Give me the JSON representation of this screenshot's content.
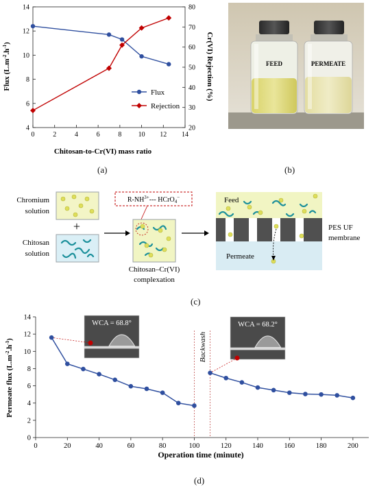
{
  "panels": {
    "a": "(a)",
    "b": "(b)",
    "c": "(c)",
    "d": "(d)"
  },
  "bottles": {
    "left": "FEED",
    "right": "PERMEATE"
  },
  "schematic": {
    "chromium": "Chromium solution",
    "plus": "+",
    "chitosan": "Chitosan solution",
    "formula": "R-NH3+--- HCrO4−",
    "complex": "Chitosan–Cr(VI) complexation",
    "feed": "Feed",
    "membrane": "PES UF membrane",
    "permeate": "Permeate"
  },
  "chart_data": [
    {
      "type": "line",
      "xlabel": "Chitosan-to-Cr(VI) mass ratio",
      "ylabel": "Flux (L.m-2.h-1)",
      "y2label": "Cr(VI) Rejection (%)",
      "xlim": [
        0,
        14
      ],
      "ylim": [
        4,
        14
      ],
      "y2lim": [
        20,
        80
      ],
      "xticks": [
        "0",
        "2",
        "4",
        "6",
        "8",
        "10",
        "12",
        "14"
      ],
      "yticks": [
        "4",
        "6",
        "8",
        "10",
        "12",
        "14"
      ],
      "y2ticks": [
        "20",
        "30",
        "40",
        "50",
        "60",
        "70",
        "80"
      ],
      "grid": false,
      "legend": "center-right",
      "series": [
        {
          "name": "Flux",
          "axis": "left",
          "color": "#2f4f9f",
          "marker": "circle",
          "x": [
            0,
            7,
            8.2,
            10,
            12.5
          ],
          "y": [
            12.4,
            11.7,
            11.3,
            9.9,
            9.25
          ]
        },
        {
          "name": "Rejection",
          "axis": "right",
          "color": "#c00000",
          "marker": "diamond",
          "x": [
            0,
            7,
            8.2,
            10,
            12.5
          ],
          "y": [
            28.5,
            49.5,
            61,
            69.5,
            74.5
          ]
        }
      ]
    },
    {
      "type": "line",
      "xlabel": "Operation time (minute)",
      "ylabel": "Permeate flux (L.m-2.h-1)",
      "xlim": [
        0,
        210
      ],
      "ylim": [
        0,
        14
      ],
      "xticks": [
        "0",
        "20",
        "40",
        "60",
        "80",
        "100",
        "120",
        "140",
        "160",
        "180",
        "200"
      ],
      "yticks": [
        "0",
        "2",
        "4",
        "6",
        "8",
        "10",
        "12",
        "14"
      ],
      "grid": false,
      "annotations": {
        "backwash": "Backwash",
        "wca1": "WCA = 68.8°",
        "wca2": "WCA = 68.2°"
      },
      "series": [
        {
          "color": "#2f4f9f",
          "marker": "circle",
          "x": [
            10,
            20,
            30,
            40,
            50,
            60,
            70,
            80,
            90,
            100
          ],
          "y": [
            11.6,
            8.55,
            7.95,
            7.35,
            6.7,
            5.95,
            5.65,
            5.2,
            4.0,
            3.7
          ]
        },
        {
          "color": "#2f4f9f",
          "marker": "circle",
          "x": [
            110,
            120,
            130,
            140,
            150,
            160,
            170,
            180,
            190,
            200
          ],
          "y": [
            7.5,
            6.9,
            6.4,
            5.8,
            5.5,
            5.2,
            5.05,
            5.0,
            4.9,
            4.6
          ]
        }
      ]
    }
  ]
}
